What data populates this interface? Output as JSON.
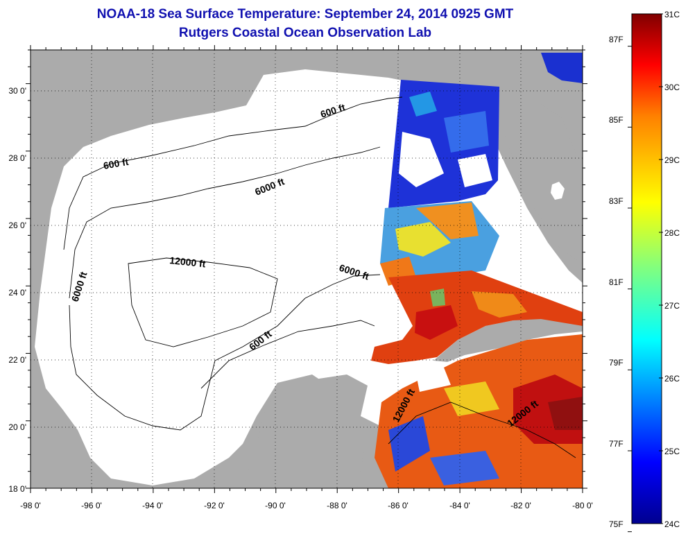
{
  "title": "NOAA-18 Sea Surface Temperature:  September 24, 2014 0925 GMT",
  "subtitle": "Rutgers Coastal Ocean Observation Lab",
  "axes": {
    "lon_ticks": [
      "-98 0'",
      "-96 0'",
      "-94 0'",
      "-92 0'",
      "-90 0'",
      "-88 0'",
      "-86 0'",
      "-84 0'",
      "-82 0'",
      "-80 0'"
    ],
    "lat_ticks": [
      "18 0'",
      "20 0'",
      "22 0'",
      "24 0'",
      "26 0'",
      "28 0'",
      "30 0'"
    ],
    "lon_range": [
      -98,
      -80
    ],
    "lat_range": [
      18,
      31
    ]
  },
  "contour_labels": [
    "600 ft",
    "600 ft",
    "6000 ft",
    "6000 ft",
    "12000 ft",
    "6000 ft",
    "600 ft",
    "12000 ft",
    "12000 ft"
  ],
  "colorbar": {
    "celsius_labels": [
      "31C",
      "30C",
      "29C",
      "28C",
      "27C",
      "26C",
      "25C",
      "24C"
    ],
    "celsius_values": [
      31,
      30,
      29,
      28,
      27,
      26,
      25,
      24
    ],
    "fahrenheit_labels": [
      "87F",
      "85F",
      "83F",
      "81F",
      "79F",
      "77F",
      "75F"
    ],
    "fahrenheit_values": [
      87,
      85,
      83,
      81,
      79,
      77,
      75
    ],
    "range_c": [
      24,
      31
    ],
    "colors": [
      "#00008f",
      "#0000ff",
      "#0080ff",
      "#00ffff",
      "#80ff80",
      "#ffff00",
      "#ff8000",
      "#ff0000",
      "#800000"
    ]
  },
  "colors": {
    "land": "#ababab",
    "ocean_no_data": "#ffffff",
    "title": "#1010b0"
  }
}
